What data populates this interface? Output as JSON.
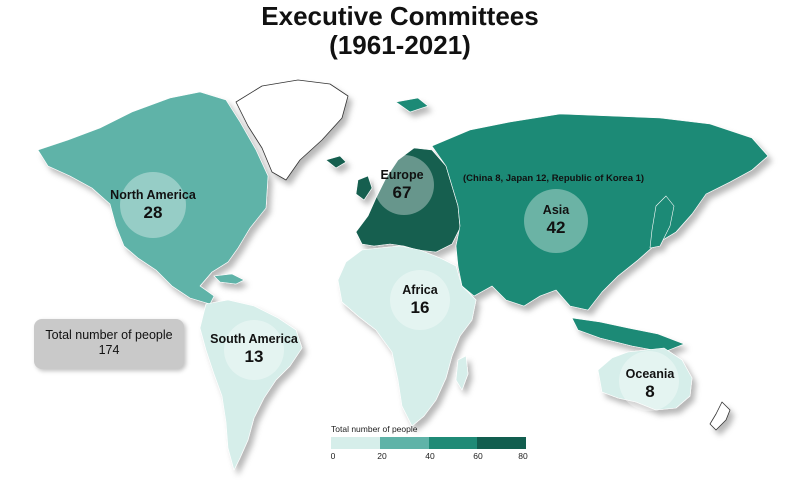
{
  "title": {
    "line1": "Executive Committees",
    "line2": "(1961-2021)"
  },
  "regions": [
    {
      "id": "north-america",
      "name": "North America",
      "value": 28,
      "color": "#5fb3a8"
    },
    {
      "id": "south-america",
      "name": "South America",
      "value": 13,
      "color": "#d6eeea"
    },
    {
      "id": "europe",
      "name": "Europe",
      "value": 67,
      "color": "#125e4f"
    },
    {
      "id": "africa",
      "name": "Africa",
      "value": 16,
      "color": "#d6eeea"
    },
    {
      "id": "asia",
      "name": "Asia",
      "value": 42,
      "color": "#1f8a76"
    },
    {
      "id": "oceania",
      "name": "Oceania",
      "value": 8,
      "color": "#d6eeea"
    }
  ],
  "asia_note": "(China 8, Japan 12, Republic of Korea 1)",
  "total": {
    "label": "Total number of people",
    "value": "174"
  },
  "legend": {
    "title": "Total number of people",
    "ticks": [
      "0",
      "20",
      "40",
      "60",
      "80"
    ],
    "colors": [
      "#d6eeea",
      "#5fb3a8",
      "#1f8a76",
      "#125e4f"
    ]
  }
}
